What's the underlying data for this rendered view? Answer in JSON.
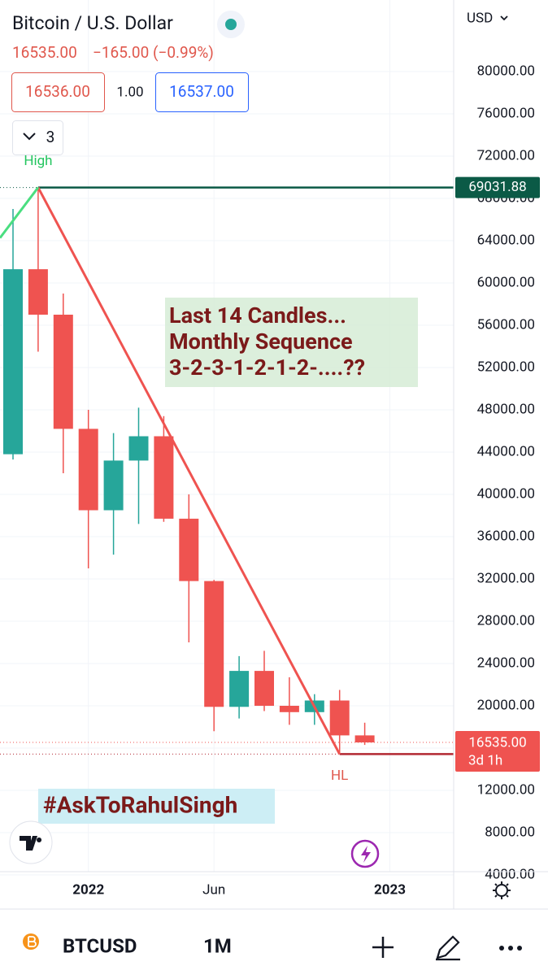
{
  "header": {
    "title": "Bitcoin / U.S. Dollar",
    "price": "16535.00",
    "change": "−165.00 (−0.99%)",
    "bid": "16536.00",
    "spread": "1.00",
    "ask": "16537.00",
    "indicators": "3",
    "currency": "USD"
  },
  "chart_data": {
    "type": "candlestick",
    "categories": [
      null,
      null,
      null,
      "2022",
      null,
      null,
      null,
      null,
      "Jun",
      null,
      null,
      null,
      null,
      null,
      null,
      "2023"
    ],
    "open": [
      43800,
      61300,
      57000,
      46200,
      38500,
      43200,
      45500,
      37700,
      31800,
      19900,
      23300,
      20000,
      19400,
      20500,
      17200,
      null
    ],
    "high": [
      67000,
      69031.88,
      59000,
      48000,
      45800,
      48200,
      47400,
      40000,
      31900,
      24700,
      25200,
      22700,
      21100,
      21500,
      18400,
      null
    ],
    "low": [
      43300,
      53500,
      42000,
      33000,
      34300,
      37200,
      37400,
      26000,
      17600,
      18800,
      19500,
      18200,
      18200,
      15430.31,
      16300,
      null
    ],
    "close": [
      61300,
      57000,
      46200,
      38500,
      43200,
      45500,
      37700,
      31800,
      19900,
      23300,
      20000,
      19400,
      20500,
      17200,
      16535,
      null
    ],
    "up_color": "#26a69a",
    "down_color": "#ef5350",
    "ylim": [
      4000,
      86000
    ],
    "yticks": [
      {
        "value": 4000,
        "label": "4000.00"
      },
      {
        "value": 8000,
        "label": "8000.00"
      },
      {
        "value": 12000,
        "label": "12000.00"
      },
      {
        "value": 16000,
        "label": "16000.00"
      },
      {
        "value": 20000,
        "label": "20000.00"
      },
      {
        "value": 24000,
        "label": "24000.00"
      },
      {
        "value": 28000,
        "label": "28000.00"
      },
      {
        "value": 32000,
        "label": "32000.00"
      },
      {
        "value": 36000,
        "label": "36000.00"
      },
      {
        "value": 40000,
        "label": "40000.00"
      },
      {
        "value": 44000,
        "label": "44000.00"
      },
      {
        "value": 48000,
        "label": "48000.00"
      },
      {
        "value": 52000,
        "label": "52000.00"
      },
      {
        "value": 56000,
        "label": "56000.00"
      },
      {
        "value": 60000,
        "label": "60000.00"
      },
      {
        "value": 64000,
        "label": "64000.00"
      },
      {
        "value": 68000,
        "label": "68000.00"
      },
      {
        "value": 72000,
        "label": "72000.00"
      },
      {
        "value": 76000,
        "label": "76000.00"
      },
      {
        "value": 80000,
        "label": "80000.00"
      }
    ],
    "grid": true,
    "levels": [
      {
        "name": "High",
        "value": 69031.88,
        "color": "#0b5a46"
      },
      {
        "name": "HL",
        "value": 15430.31,
        "color": "#b22833"
      }
    ],
    "last_price": {
      "value": 16535,
      "label": "16535.00",
      "countdown": "3d 1h",
      "color": "#ef5350"
    },
    "annotation": [
      "Last 14 Candles...",
      "Monthly Sequence",
      "3-2-3-1-2-1-2-....??"
    ],
    "hashtag": "#AskToRahulSingh"
  },
  "toolbar": {
    "symbol": "BTCUSD",
    "interval": "1M"
  }
}
